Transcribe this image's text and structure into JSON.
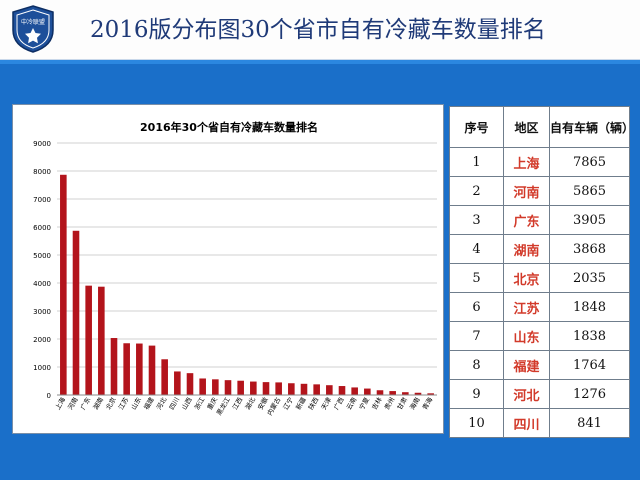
{
  "slide": {
    "title": "2016版分布图30个省市自有冷藏车数量排名",
    "logo_text": "中冷联盟"
  },
  "table": {
    "headers": [
      "序号",
      "地区",
      "自有车辆（辆）"
    ],
    "rows": [
      {
        "rank": "1",
        "region": "上海",
        "count": "7865"
      },
      {
        "rank": "2",
        "region": "河南",
        "count": "5865"
      },
      {
        "rank": "3",
        "region": "广东",
        "count": "3905"
      },
      {
        "rank": "4",
        "region": "湖南",
        "count": "3868"
      },
      {
        "rank": "5",
        "region": "北京",
        "count": "2035"
      },
      {
        "rank": "6",
        "region": "江苏",
        "count": "1848"
      },
      {
        "rank": "7",
        "region": "山东",
        "count": "1838"
      },
      {
        "rank": "8",
        "region": "福建",
        "count": "1764"
      },
      {
        "rank": "9",
        "region": "河北",
        "count": "1276"
      },
      {
        "rank": "10",
        "region": "四川",
        "count": "841"
      }
    ]
  },
  "chart_data": {
    "type": "bar",
    "title": "2016年30个省自有冷藏车数量排名",
    "xlabel": "",
    "ylabel": "",
    "ylim": [
      0,
      9000
    ],
    "yticks": [
      0,
      1000,
      2000,
      3000,
      4000,
      5000,
      6000,
      7000,
      8000,
      9000
    ],
    "grid": true,
    "bar_color": "#b3141b",
    "categories": [
      "上海",
      "河南",
      "广东",
      "湖南",
      "北京",
      "江苏",
      "山东",
      "福建",
      "河北",
      "四川",
      "山西",
      "浙江",
      "重庆",
      "黑龙江",
      "江西",
      "湖北",
      "安徽",
      "内蒙古",
      "辽宁",
      "新疆",
      "陕西",
      "天津",
      "广西",
      "云南",
      "宁夏",
      "吉林",
      "贵州",
      "甘肃",
      "海南",
      "青海"
    ],
    "values": [
      7865,
      5865,
      3905,
      3868,
      2035,
      1848,
      1838,
      1764,
      1276,
      841,
      780,
      590,
      560,
      530,
      510,
      480,
      460,
      450,
      420,
      400,
      380,
      350,
      320,
      270,
      230,
      170,
      140,
      100,
      80,
      60
    ]
  }
}
